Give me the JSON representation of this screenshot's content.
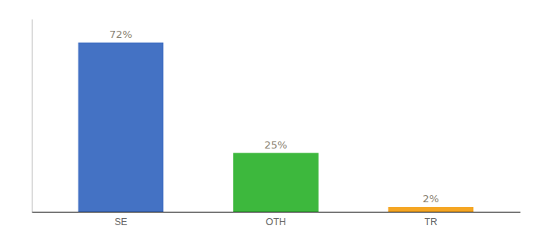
{
  "chart_data": {
    "type": "bar",
    "categories": [
      "SE",
      "OTH",
      "TR"
    ],
    "values": [
      72,
      25,
      2
    ],
    "value_labels": [
      "72%",
      "25%",
      "2%"
    ],
    "colors": [
      "#4472c4",
      "#3db83d",
      "#f5a623"
    ],
    "ylim": [
      0,
      82
    ],
    "data_labels": true,
    "tick_labels": "x",
    "grid": false
  }
}
